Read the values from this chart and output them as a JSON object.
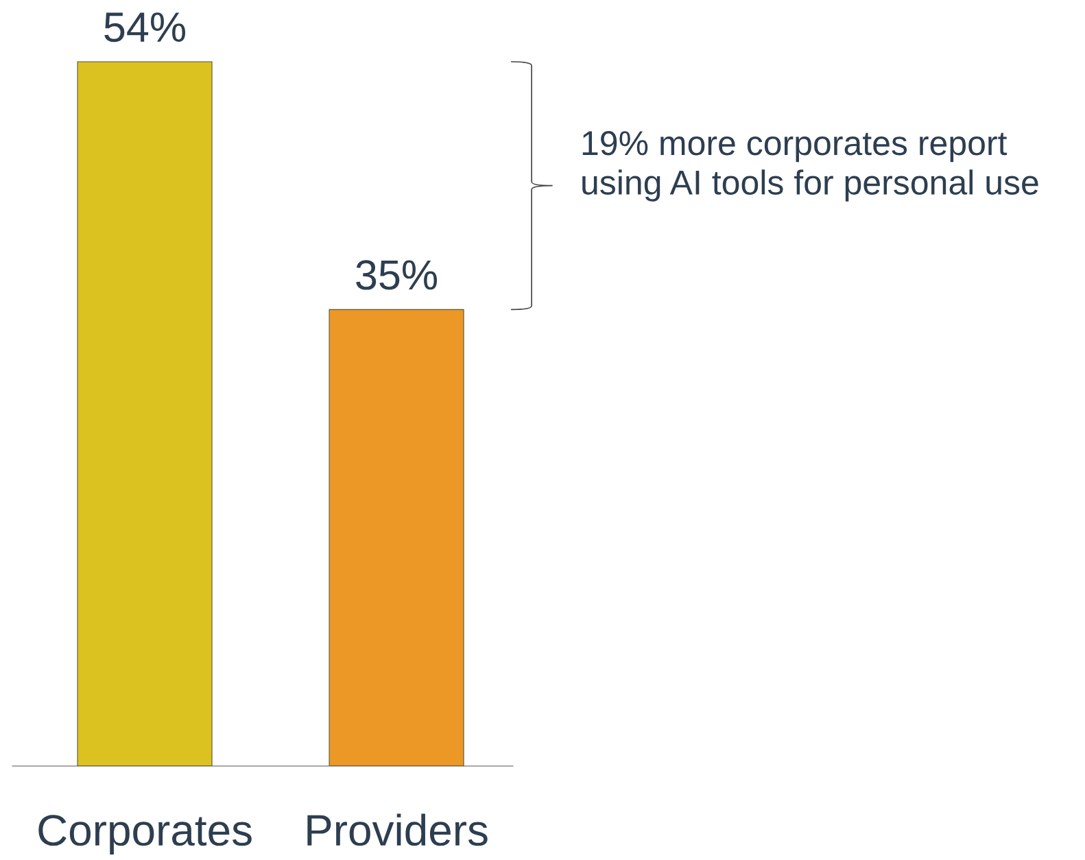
{
  "chart_data": {
    "type": "bar",
    "categories": [
      "Corporates",
      "Providers"
    ],
    "values": [
      54,
      35
    ],
    "colors": [
      "#dcc220",
      "#eb9826"
    ],
    "tick_labels": "x",
    "data_labels": true,
    "value_labels": [
      "54%",
      "35%"
    ],
    "annotations": [
      "19% more corporates report\nusing AI tools for personal use"
    ]
  }
}
